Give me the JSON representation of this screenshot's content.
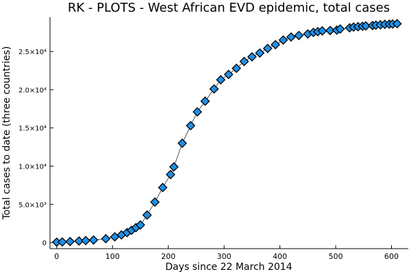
{
  "chart_data": {
    "type": "scatter",
    "title": "RK - PLOTS - West African EVD epidemic, total cases",
    "xlabel": "Days since 22 March 2014",
    "ylabel": "Total cases to date (three countries)",
    "xlim": [
      -12,
      630
    ],
    "ylim": [
      -800,
      29500
    ],
    "x_ticks": [
      0,
      100,
      200,
      300,
      400,
      500,
      600
    ],
    "x_tick_labels": [
      "0",
      "100",
      "200",
      "300",
      "400",
      "500",
      "600"
    ],
    "y_ticks": [
      0,
      5000,
      10000,
      15000,
      20000,
      25000
    ],
    "y_tick_labels": [
      "0",
      "5.0×10³",
      "1.0×10⁴",
      "1.5×10⁴",
      "2.0×10⁴",
      "2.5×10⁴"
    ],
    "grid": false,
    "legend": "none",
    "marker": "diamond",
    "marker_color": "#1e90e8",
    "series": [
      {
        "x": [
          0,
          10,
          24,
          40,
          52,
          66,
          88,
          104,
          116,
          126,
          134,
          142,
          150,
          162,
          176,
          190,
          204,
          210,
          225,
          240,
          252,
          266,
          282,
          294,
          308,
          322,
          336,
          350,
          364,
          378,
          392,
          406,
          420,
          434,
          450,
          460,
          468,
          476,
          490,
          502,
          508,
          525,
          532,
          540,
          548,
          554,
          566,
          572,
          580,
          588,
          596,
          602,
          610
        ],
        "y": [
          50,
          80,
          130,
          200,
          260,
          330,
          500,
          750,
          1000,
          1300,
          1600,
          1950,
          2300,
          3600,
          5300,
          7200,
          8900,
          9900,
          13000,
          15300,
          17100,
          18500,
          20100,
          21300,
          22000,
          22800,
          23700,
          24300,
          24800,
          25400,
          25900,
          26500,
          26900,
          27100,
          27300,
          27500,
          27600,
          27700,
          27750,
          27800,
          27950,
          28100,
          28200,
          28250,
          28300,
          28350,
          28400,
          28450,
          28500,
          28550,
          28580,
          28600,
          28640
        ]
      }
    ]
  }
}
